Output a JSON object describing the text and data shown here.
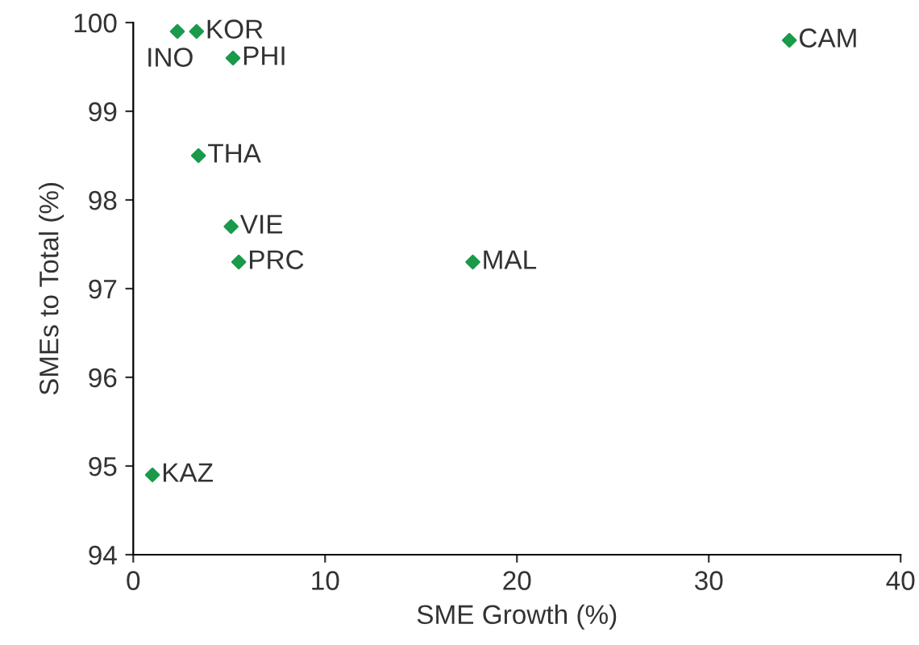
{
  "chart_data": {
    "type": "scatter",
    "xlabel": "SME Growth (%)",
    "ylabel": "SMEs to Total (%)",
    "series": [
      {
        "color": "#1a9a4a",
        "x": [
          2.3,
          3.3,
          5.2,
          34.2,
          3.4,
          5.1,
          5.5,
          17.7,
          1.0
        ],
        "values": [
          99.9,
          99.9,
          99.6,
          99.8,
          98.5,
          97.7,
          97.3,
          97.3,
          94.9
        ]
      }
    ],
    "annotations": [
      {
        "text": "INO",
        "x": 2.3,
        "y": 99.9
      },
      {
        "text": "KOR",
        "x": 3.3,
        "y": 99.9
      },
      {
        "text": "PHI",
        "x": 5.2,
        "y": 99.6
      },
      {
        "text": "CAM",
        "x": 34.2,
        "y": 99.8
      },
      {
        "text": "THA",
        "x": 3.4,
        "y": 98.5
      },
      {
        "text": "VIE",
        "x": 5.1,
        "y": 97.7
      },
      {
        "text": "PRC",
        "x": 5.5,
        "y": 97.3
      },
      {
        "text": "MAL",
        "x": 17.7,
        "y": 97.3
      },
      {
        "text": "KAZ",
        "x": 1.0,
        "y": 94.9
      }
    ],
    "xlim": [
      0,
      40
    ],
    "ylim": [
      94,
      100
    ],
    "xticks": [
      0,
      10,
      20,
      30,
      40
    ],
    "yticks": [
      94,
      95,
      96,
      97,
      98,
      99,
      100
    ],
    "marker": "diamond",
    "grid": false
  }
}
